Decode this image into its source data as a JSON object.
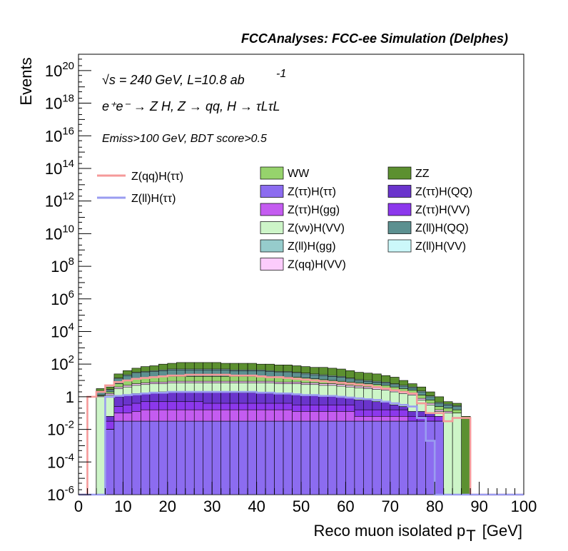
{
  "header": "FCCAnalyses: FCC-ee Simulation (Delphes)",
  "annotations": {
    "line1": "√s = 240 GeV, L=10.8 ab",
    "line1_sup": "-1",
    "line2": "e⁺e⁻ → Z H, Z → qq, H → τLτL",
    "line3": "Emiss>100 GeV, BDT score>0.5"
  },
  "chart_data": {
    "type": "histogram-stacked",
    "xlabel": "Reco muon isolated p",
    "xlabel_sub": "T",
    "xlabel_unit": "[GeV]",
    "ylabel": "Events",
    "xlim": [
      0,
      100
    ],
    "ylim": [
      1e-06,
      1e+21
    ],
    "yscale": "log",
    "x_ticks": [
      "0",
      "10",
      "20",
      "30",
      "40",
      "50",
      "60",
      "70",
      "80",
      "90",
      "100"
    ],
    "y_ticks": [
      {
        "base": "10",
        "exp": "-6"
      },
      {
        "base": "10",
        "exp": "-4"
      },
      {
        "base": "10",
        "exp": "-2"
      },
      {
        "base": "1",
        "exp": ""
      },
      {
        "base": "10",
        "exp": "2"
      },
      {
        "base": "10",
        "exp": "4"
      },
      {
        "base": "10",
        "exp": "6"
      },
      {
        "base": "10",
        "exp": "8"
      },
      {
        "base": "10",
        "exp": "10"
      },
      {
        "base": "10",
        "exp": "12"
      },
      {
        "base": "10",
        "exp": "14"
      },
      {
        "base": "10",
        "exp": "16"
      },
      {
        "base": "10",
        "exp": "18"
      },
      {
        "base": "10",
        "exp": "20"
      }
    ],
    "bin_width": 2,
    "x_start": 0,
    "stack_bottom_to_top": [
      {
        "name": "Z(ττ)H(ττ)",
        "color": "#8c6cf0",
        "cumulative_log10": [
          -9,
          -9,
          -9,
          -2,
          -1.5,
          -1.5,
          -1.5,
          -1.5,
          -1.5,
          -1.5,
          -1.5,
          -1.5,
          -1.5,
          -1.5,
          -1.5,
          -1.5,
          -1.5,
          -1.5,
          -1.5,
          -1.5,
          -1.5,
          -1.5,
          -1.5,
          -1.5,
          -1.5,
          -1.5,
          -1.5,
          -1.5,
          -1.5,
          -1.5,
          -1.5,
          -1.5,
          -1.5,
          -1.5,
          -1.5,
          -1.5,
          -1.5,
          -1.5,
          -1.5,
          -1.5,
          -1.5,
          -9,
          -9,
          -9,
          -9,
          -9,
          -9,
          -9,
          -9,
          -9
        ]
      },
      {
        "name": "Z(ll)H(gg)",
        "color": "#96cccc",
        "cumulative_log10": [
          -9,
          -9,
          -9,
          -2,
          -1.5,
          -1.5,
          -1.5,
          -1.5,
          -1.5,
          -1.5,
          -1.5,
          -1.5,
          -1.5,
          -1.5,
          -1.5,
          -1.5,
          -1.5,
          -1.5,
          -1.5,
          -1.5,
          -1.5,
          -1.5,
          -1.5,
          -1.5,
          -1.5,
          -1.5,
          -1.5,
          -1.5,
          -1.5,
          -1.5,
          -1.5,
          -1.5,
          -1.5,
          -1.5,
          -1.5,
          -1.5,
          -1.5,
          -1.5,
          -1.5,
          -1.5,
          -1.5,
          -9,
          -9,
          -9,
          -9,
          -9,
          -9,
          -9,
          -9,
          -9
        ]
      },
      {
        "name": "Z(ττ)H(gg)",
        "color": "#c45cf0",
        "cumulative_log10": [
          -9,
          -9,
          -9,
          -2,
          -1.0,
          -1.0,
          -0.9,
          -0.8,
          -0.8,
          -0.8,
          -0.8,
          -0.8,
          -0.8,
          -0.8,
          -0.8,
          -0.8,
          -0.8,
          -0.8,
          -0.8,
          -0.8,
          -0.8,
          -0.8,
          -0.8,
          -0.8,
          -0.9,
          -0.9,
          -0.9,
          -0.9,
          -0.9,
          -0.9,
          -0.9,
          -1.2,
          -1.2,
          -1.2,
          -1.2,
          -1.2,
          -1.2,
          -1.5,
          -1.5,
          -1.5,
          -1.5,
          -9,
          -9,
          -9,
          -9,
          -9,
          -9,
          -9,
          -9,
          -9
        ]
      },
      {
        "name": "Z(ττ)H(VV)",
        "color": "#8c38ec",
        "cumulative_log10": [
          -9,
          -9,
          -9,
          -1.5,
          -0.6,
          -0.5,
          -0.4,
          -0.3,
          -0.3,
          -0.3,
          -0.3,
          -0.3,
          -0.3,
          -0.3,
          -0.4,
          -0.4,
          -0.4,
          -0.4,
          -0.4,
          -0.4,
          -0.4,
          -0.4,
          -0.4,
          -0.4,
          -0.5,
          -0.5,
          -0.5,
          -0.5,
          -0.5,
          -0.5,
          -0.5,
          -0.8,
          -0.8,
          -0.8,
          -0.8,
          -0.8,
          -0.8,
          -1.2,
          -1.2,
          -1.2,
          -1.2,
          -9,
          -9,
          -9,
          -9,
          -9,
          -9,
          -9,
          -9,
          -9
        ]
      },
      {
        "name": "Z(ττ)H(QQ)",
        "color": "#6a34cc",
        "cumulative_log10": [
          -9,
          -9,
          -9,
          -1.2,
          0.0,
          0.1,
          0.2,
          0.2,
          0.25,
          0.3,
          0.3,
          0.3,
          0.3,
          0.3,
          0.3,
          0.3,
          0.3,
          0.25,
          0.25,
          0.25,
          0.25,
          0.2,
          0.2,
          0.2,
          0.15,
          0.1,
          0.1,
          0.05,
          0.05,
          0.0,
          -0.05,
          -0.2,
          -0.2,
          -0.3,
          -0.3,
          -0.5,
          -0.6,
          -0.9,
          -0.9,
          -1.0,
          -1.2,
          -9,
          -9,
          -9,
          -9,
          -9,
          -9,
          -9,
          -9,
          -9
        ]
      },
      {
        "name": "Z(νν)H(VV)",
        "color": "#cdf5c8",
        "cumulative_log10": [
          -9,
          -9,
          0.0,
          0.1,
          0.5,
          0.6,
          0.7,
          0.75,
          0.8,
          0.8,
          0.85,
          0.85,
          0.85,
          0.85,
          0.85,
          0.85,
          0.85,
          0.85,
          0.85,
          0.85,
          0.85,
          0.85,
          0.8,
          0.8,
          0.8,
          0.75,
          0.75,
          0.7,
          0.7,
          0.65,
          0.6,
          0.55,
          0.5,
          0.45,
          0.4,
          0.3,
          0.2,
          0.1,
          -0.2,
          -0.5,
          -0.9,
          -1.0,
          -1.0,
          -9,
          -9,
          -9,
          -9,
          -9,
          -9,
          -9
        ]
      },
      {
        "name": "Z(qq)H(VV)",
        "color": "#fcccfc",
        "cumulative_log10": [
          -9,
          -9,
          0.05,
          0.2,
          0.6,
          0.7,
          0.8,
          0.85,
          0.9,
          0.9,
          0.95,
          0.95,
          0.95,
          0.95,
          0.95,
          0.95,
          0.95,
          0.95,
          0.95,
          0.95,
          0.95,
          0.95,
          0.9,
          0.9,
          0.9,
          0.85,
          0.85,
          0.8,
          0.8,
          0.75,
          0.7,
          0.65,
          0.6,
          0.55,
          0.5,
          0.4,
          0.3,
          0.2,
          -0.1,
          -0.4,
          -0.8,
          -0.9,
          -1.0,
          -9,
          -9,
          -9,
          -9,
          -9,
          -9,
          -9
        ]
      },
      {
        "name": "WW",
        "color": "#96d36c",
        "cumulative_log10": [
          -9,
          -9,
          0.1,
          0.3,
          0.8,
          1.0,
          1.1,
          1.15,
          1.2,
          1.25,
          1.25,
          1.25,
          1.25,
          1.25,
          1.25,
          1.25,
          1.25,
          1.25,
          1.25,
          1.25,
          1.25,
          1.25,
          1.2,
          1.2,
          1.2,
          1.15,
          1.1,
          1.05,
          1.0,
          0.95,
          0.9,
          0.85,
          0.8,
          0.75,
          0.7,
          0.6,
          0.5,
          0.4,
          0.1,
          -0.2,
          -0.6,
          -0.7,
          -0.8,
          -9,
          -9,
          -9,
          -9,
          -9,
          -9,
          -9
        ]
      },
      {
        "name": "Z(ll)H(QQ)",
        "color": "#5c9090",
        "cumulative_log10": [
          -9,
          -9,
          0.3,
          0.4,
          1.1,
          1.3,
          1.45,
          1.5,
          1.55,
          1.6,
          1.65,
          1.65,
          1.65,
          1.65,
          1.65,
          1.65,
          1.65,
          1.6,
          1.6,
          1.6,
          1.6,
          1.55,
          1.5,
          1.5,
          1.45,
          1.4,
          1.35,
          1.3,
          1.25,
          1.2,
          1.1,
          1.0,
          0.95,
          0.9,
          0.85,
          0.75,
          0.65,
          0.55,
          0.3,
          0.0,
          -0.4,
          -0.5,
          -0.6,
          -9,
          -9,
          -9,
          -9,
          -9,
          -9,
          -9
        ]
      },
      {
        "name": "Z(ll)H(VV)",
        "color": "#ccf8fa",
        "cumulative_log10": [
          -9,
          -9,
          0.35,
          0.45,
          1.15,
          1.35,
          1.5,
          1.55,
          1.6,
          1.65,
          1.7,
          1.7,
          1.7,
          1.7,
          1.7,
          1.7,
          1.7,
          1.65,
          1.65,
          1.65,
          1.65,
          1.6,
          1.55,
          1.55,
          1.5,
          1.45,
          1.4,
          1.35,
          1.3,
          1.25,
          1.15,
          1.05,
          1.0,
          0.95,
          0.9,
          0.8,
          0.7,
          0.6,
          0.35,
          0.05,
          -0.35,
          -0.45,
          -0.55,
          -9,
          -9,
          -9,
          -9,
          -9,
          -9,
          -9
        ]
      },
      {
        "name": "ZZ",
        "color": "#5c9030",
        "cumulative_log10": [
          -9,
          -9,
          0.5,
          0.6,
          1.4,
          1.6,
          1.75,
          1.85,
          1.9,
          2.0,
          2.05,
          2.1,
          2.1,
          2.1,
          2.1,
          2.1,
          2.05,
          2.05,
          2.05,
          2.05,
          2.0,
          2.0,
          1.95,
          1.95,
          1.9,
          1.85,
          1.8,
          1.8,
          1.75,
          1.7,
          1.6,
          1.5,
          1.45,
          1.4,
          1.3,
          1.2,
          1.0,
          0.8,
          0.6,
          0.3,
          0.0,
          -0.3,
          -0.4,
          -1.2,
          -9,
          -9,
          -9,
          -9,
          -9,
          -9
        ]
      }
    ],
    "lines": [
      {
        "name": "Z(qq)H(ττ)",
        "color": "#f59a9a",
        "log10": [
          -9,
          0.0,
          0.3,
          0.7,
          0.9,
          1.0,
          1.1,
          1.15,
          1.2,
          1.25,
          1.3,
          1.3,
          1.35,
          1.35,
          1.35,
          1.35,
          1.35,
          1.3,
          1.3,
          1.3,
          1.25,
          1.2,
          1.2,
          1.15,
          1.1,
          1.05,
          1.0,
          0.95,
          0.9,
          0.85,
          0.8,
          0.75,
          0.7,
          0.6,
          0.5,
          0.4,
          0.3,
          0.2,
          -0.4,
          -1.0,
          -1.0,
          -1.5,
          -1.3,
          -1.3,
          -9,
          -9,
          -9,
          -9,
          -9,
          -9
        ]
      },
      {
        "name": "Z(ll)H(ττ)",
        "color": "#9a9cf0",
        "log10": [
          -9,
          -9,
          -9,
          0.0,
          0.05,
          0.1,
          0.15,
          0.2,
          0.25,
          0.25,
          0.3,
          0.3,
          0.3,
          0.3,
          0.3,
          0.3,
          0.3,
          0.3,
          0.3,
          0.3,
          0.25,
          0.25,
          0.2,
          0.2,
          0.15,
          0.1,
          0.1,
          0.05,
          0.05,
          0.0,
          -0.05,
          -0.1,
          -0.15,
          -0.2,
          -0.3,
          -0.4,
          -0.5,
          -0.6,
          -1.3,
          -2.7,
          -9,
          -9,
          -9,
          -9,
          -9,
          -9,
          -9,
          -9,
          -9,
          -9
        ]
      }
    ],
    "legend_lines": [
      "Z(qq)H(ττ)",
      "Z(ll)H(ττ)"
    ],
    "legend_fills_col1": [
      "WW",
      "Z(ττ)H(ττ)",
      "Z(ττ)H(gg)",
      "Z(νν)H(VV)",
      "Z(ll)H(gg)",
      "Z(qq)H(VV)"
    ],
    "legend_fills_col2": [
      "ZZ",
      "Z(ττ)H(QQ)",
      "Z(ττ)H(VV)",
      "Z(ll)H(QQ)",
      "Z(ll)H(VV)"
    ]
  }
}
